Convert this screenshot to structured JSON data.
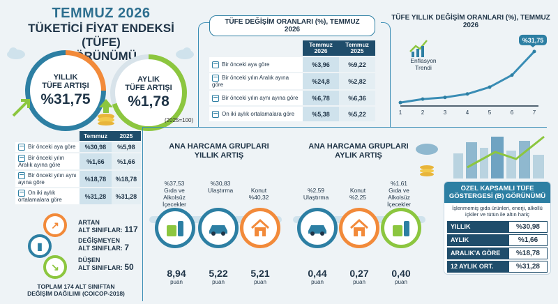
{
  "header": {
    "title_line1": "TEMMUZ 2026",
    "title_line2": "TÜKETİCİ FİYAT ENDEKSİ (TÜFE)",
    "title_line3": "GÖRÜNÜMÜ"
  },
  "kpi": {
    "annual_label_1": "YILLIK",
    "annual_label_2": "TÜFE ARTIŞI",
    "annual_value": "%31,75",
    "monthly_label_1": "AYLIK",
    "monthly_label_2": "TÜFE ARTIŞI",
    "monthly_value": "%1,78",
    "base_note": "(2025=100)"
  },
  "tufe_changes": {
    "title": "TÜFE DEĞİŞİM ORANLARI (%), TEMMUZ 2026",
    "col1": "Temmuz\n2026",
    "col2": "Temmuz\n2025",
    "rows": [
      {
        "label": "Bir önceki aya göre",
        "v1": "%3,96",
        "v2": "%9,22"
      },
      {
        "label": "Bir önceki yılın Aralık ayına göre",
        "v1": "%24,8",
        "v2": "%2,82"
      },
      {
        "label": "Bir önceki yılın aynı ayına göre",
        "v1": "%6,78",
        "v2": "%6,36"
      },
      {
        "label": "On iki aylık ortalamalara göre",
        "v1": "%5,38",
        "v2": "%5,22"
      }
    ]
  },
  "left_table": {
    "col1": "Temmuz",
    "col2": "2025",
    "rows": [
      {
        "label": "Bir önceki aya göre",
        "v1": "%30,98",
        "v2": "%5,98"
      },
      {
        "label": "Bir önceki yılın Aralık ayına göre",
        "v1": "%1,66",
        "v2": "%1,66"
      },
      {
        "label": "Bir önceki yılın aynı ayına göre",
        "v1": "%18,78",
        "v2": "%18,78"
      },
      {
        "label": "On iki aylık ortalamalara göre",
        "v1": "%31,28",
        "v2": "%31,28"
      }
    ]
  },
  "chart_data": {
    "type": "line",
    "title": "TÜFE YILLIK DEĞİŞİM ORANLARI (%), TEMMUZ 2026",
    "x": [
      1,
      2,
      3,
      4,
      5,
      6,
      7
    ],
    "series": [
      {
        "values": [
          2,
          4,
          5,
          7,
          11,
          18,
          31.75
        ]
      }
    ],
    "annotation": "Enflasyon Trendi",
    "end_label": "%31,75",
    "colors": {
      "line": "#3a8db5",
      "accent": "#2d7fa3"
    }
  },
  "annual_groups": {
    "title_1": "ANA HARCAMA GRUPLARI",
    "title_2": "YILLIK ARTIŞ",
    "items": [
      {
        "pct": "%37,53",
        "name": "Gıda ve Alkolsüz İçecekler",
        "points": "8,94",
        "unit": "puan",
        "color": "#2d7fa3",
        "icon": "grocery-icon"
      },
      {
        "pct": "%30,83",
        "name": "Ulaştırma",
        "points": "5,22",
        "unit": "puan",
        "color": "#2d7fa3",
        "icon": "car-icon"
      },
      {
        "pct": "%40,32",
        "name": "Konut",
        "points": "5,21",
        "unit": "puan",
        "color": "#f28a3a",
        "icon": "house-icon"
      }
    ]
  },
  "monthly_groups": {
    "title_1": "ANA HARCAMA GRUPLARI",
    "title_2": "AYLIK ARTIŞ",
    "items": [
      {
        "pct": "%2,59",
        "name": "Ulaştırma",
        "points": "0,44",
        "unit": "puan",
        "color": "#2d7fa3",
        "icon": "car-icon"
      },
      {
        "pct": "%2,25",
        "name": "Konut",
        "points": "0,27",
        "unit": "puan",
        "color": "#f28a3a",
        "icon": "house-icon"
      },
      {
        "pct": "%1,61",
        "name": "Gıda ve Alkolsüz İçecekler",
        "points": "0,40",
        "unit": "puan",
        "color": "#8cc63f",
        "icon": "grocery-icon"
      }
    ]
  },
  "subclasses": {
    "up_label": "ARTAN",
    "up_sub": "ALT SINIFLAR:",
    "up_value": "117",
    "same_label": "DEĞİŞMEYEN",
    "same_sub": "ALT SINIFLAR:",
    "same_value": "7",
    "down_label": "DÜŞEN",
    "down_sub": "ALT SINIFLAR:",
    "down_value": "50",
    "footer_1": "TOPLAM 174 ALT SINIFTAN",
    "footer_2": "DEĞİŞİM DAĞILIMI (COICOP-2018)"
  },
  "special": {
    "title": "ÖZEL KAPSAMLI TÜFE GÖSTERGESİ (B) GÖRÜNÜMÜ",
    "desc": "İşlenmemiş gıda ürünleri, enerji, alkollü içkiler ve tütün ile altın hariç",
    "rows": [
      {
        "k": "YILLIK",
        "v": "%30,98"
      },
      {
        "k": "AYLIK",
        "v": "%1,66"
      },
      {
        "k": "ARALIK'A GÖRE",
        "v": "%18,78"
      },
      {
        "k": "12 AYLIK ORT.",
        "v": "%31,28"
      }
    ]
  }
}
